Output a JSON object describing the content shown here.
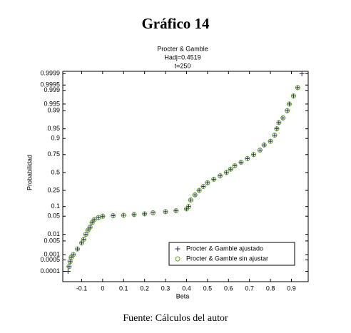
{
  "chart_data": {
    "type": "probability",
    "title": "Gráfico 14",
    "subtitle": [
      "Procter & Gamble",
      "Hadj=0.4519",
      "t=250"
    ],
    "x_label": "Beta",
    "y_label": "Probabilidad",
    "footer": "Fuente: Cálculos del autor",
    "yscale": "normal",
    "xlim": [
      -0.19,
      0.98
    ],
    "ylim": [
      2e-05,
      0.99993
    ],
    "xticks": [
      -0.1,
      0,
      0.1,
      0.2,
      0.3,
      0.4,
      0.5,
      0.6,
      0.7,
      0.8,
      0.9
    ],
    "yticks": [
      0.0001,
      0.0005,
      0.001,
      0.005,
      0.01,
      0.05,
      0.1,
      0.25,
      0.5,
      0.75,
      0.9,
      0.95,
      0.99,
      0.995,
      0.999,
      0.9995,
      0.9999
    ],
    "legend": "lower right",
    "series": [
      {
        "name": "Procter & Gamble ajustado",
        "marker": "plus",
        "color": "#2e1a5c",
        "x": [
          -0.165,
          -0.16,
          -0.155,
          -0.15,
          -0.14,
          -0.12,
          -0.1,
          -0.09,
          -0.08,
          -0.07,
          -0.06,
          -0.05,
          -0.04,
          -0.02,
          0,
          0.05,
          0.1,
          0.15,
          0.2,
          0.24,
          0.3,
          0.35,
          0.4,
          0.41,
          0.42,
          0.44,
          0.46,
          0.48,
          0.5,
          0.53,
          0.56,
          0.59,
          0.61,
          0.63,
          0.66,
          0.69,
          0.72,
          0.75,
          0.77,
          0.8,
          0.82,
          0.83,
          0.84,
          0.86,
          0.88,
          0.89,
          0.91,
          0.93,
          0.95
        ],
        "values": [
          0.0001,
          0.0002,
          0.0004,
          0.0007,
          0.001,
          0.002,
          0.004,
          0.006,
          0.01,
          0.015,
          0.02,
          0.03,
          0.038,
          0.045,
          0.05,
          0.052,
          0.054,
          0.057,
          0.06,
          0.065,
          0.07,
          0.075,
          0.085,
          0.1,
          0.15,
          0.2,
          0.25,
          0.3,
          0.35,
          0.4,
          0.45,
          0.5,
          0.55,
          0.6,
          0.65,
          0.7,
          0.75,
          0.8,
          0.85,
          0.88,
          0.92,
          0.95,
          0.97,
          0.98,
          0.99,
          0.995,
          0.998,
          0.9993,
          0.9999
        ]
      },
      {
        "name": "Procter & Gamble sin ajustar",
        "marker": "circle",
        "color": "#5aa52a",
        "x": [
          -0.16,
          -0.155,
          -0.15,
          -0.14,
          -0.12,
          -0.1,
          -0.09,
          -0.08,
          -0.07,
          -0.06,
          -0.05,
          -0.04,
          -0.02,
          0,
          0.05,
          0.1,
          0.15,
          0.2,
          0.24,
          0.3,
          0.35,
          0.4,
          0.41,
          0.42,
          0.44,
          0.46,
          0.48,
          0.5,
          0.53,
          0.56,
          0.59,
          0.61,
          0.63,
          0.66,
          0.69,
          0.72,
          0.75,
          0.77,
          0.8,
          0.82,
          0.83,
          0.84,
          0.86,
          0.88,
          0.89,
          0.91,
          0.93
        ],
        "values": [
          0.0002,
          0.0004,
          0.0007,
          0.001,
          0.002,
          0.004,
          0.006,
          0.01,
          0.015,
          0.02,
          0.03,
          0.038,
          0.045,
          0.05,
          0.052,
          0.054,
          0.057,
          0.06,
          0.065,
          0.07,
          0.075,
          0.085,
          0.1,
          0.15,
          0.2,
          0.25,
          0.3,
          0.35,
          0.4,
          0.45,
          0.5,
          0.55,
          0.6,
          0.65,
          0.7,
          0.75,
          0.8,
          0.85,
          0.88,
          0.92,
          0.95,
          0.97,
          0.98,
          0.99,
          0.995,
          0.998,
          0.9993
        ]
      }
    ]
  }
}
